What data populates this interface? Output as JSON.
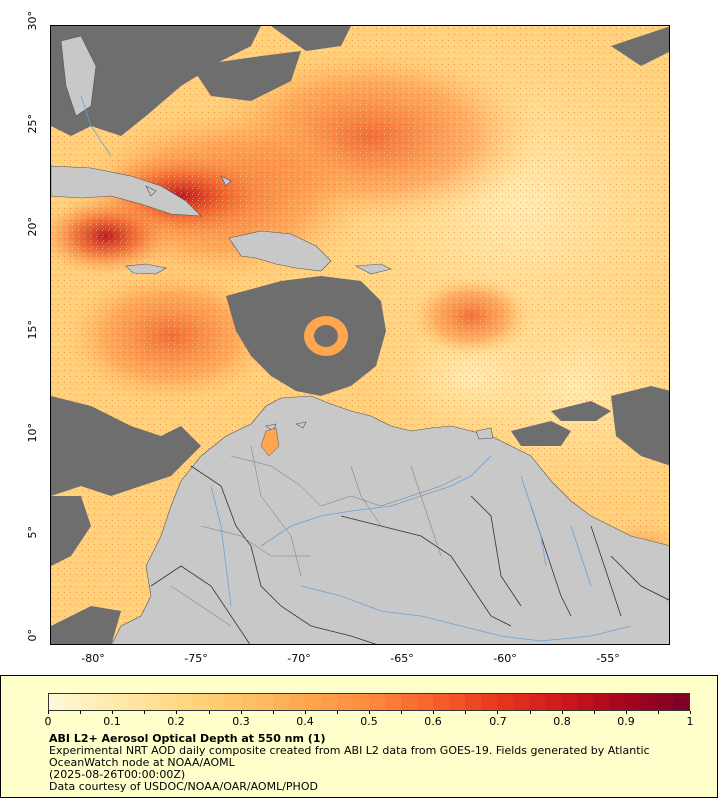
{
  "map": {
    "lat_labels": [
      "30°",
      "25°",
      "20°",
      "15°",
      "10°",
      "5°",
      "0°"
    ],
    "lon_labels": [
      "-80°",
      "-75°",
      "-70°",
      "-65°",
      "-60°",
      "-55°"
    ],
    "lat_range": [
      0,
      30
    ],
    "lon_range": [
      -82,
      -52
    ],
    "land_color": "#c8c8c8",
    "nodata_color": "#6e6e6e",
    "border_color": "#333333",
    "river_color": "#6fa0d4"
  },
  "legend": {
    "ticks": [
      "0",
      "0.1",
      "0.2",
      "0.3",
      "0.4",
      "0.5",
      "0.6",
      "0.7",
      "0.8",
      "0.9",
      "1"
    ],
    "range": [
      0,
      1
    ],
    "colors": [
      "#fff6d2",
      "#ffe9a8",
      "#ffd882",
      "#ffc265",
      "#ffa64f",
      "#ff8a3d",
      "#f8622c",
      "#e93a1f",
      "#d21a1c",
      "#a8071f",
      "#7f0026"
    ],
    "title": "ABI L2+ Aerosol Optical Depth at 550 nm (1)",
    "line1": "Experimental NRT AOD daily composite created from ABI L2 data from GOES-19. Fields generated by Atlantic",
    "line2": "OceanWatch node at NOAA/AOML",
    "line3": "(2025-08-26T00:00:00Z)",
    "line4": "Data courtesy of USDOC/NOAA/OAR/AOML/PHOD"
  }
}
